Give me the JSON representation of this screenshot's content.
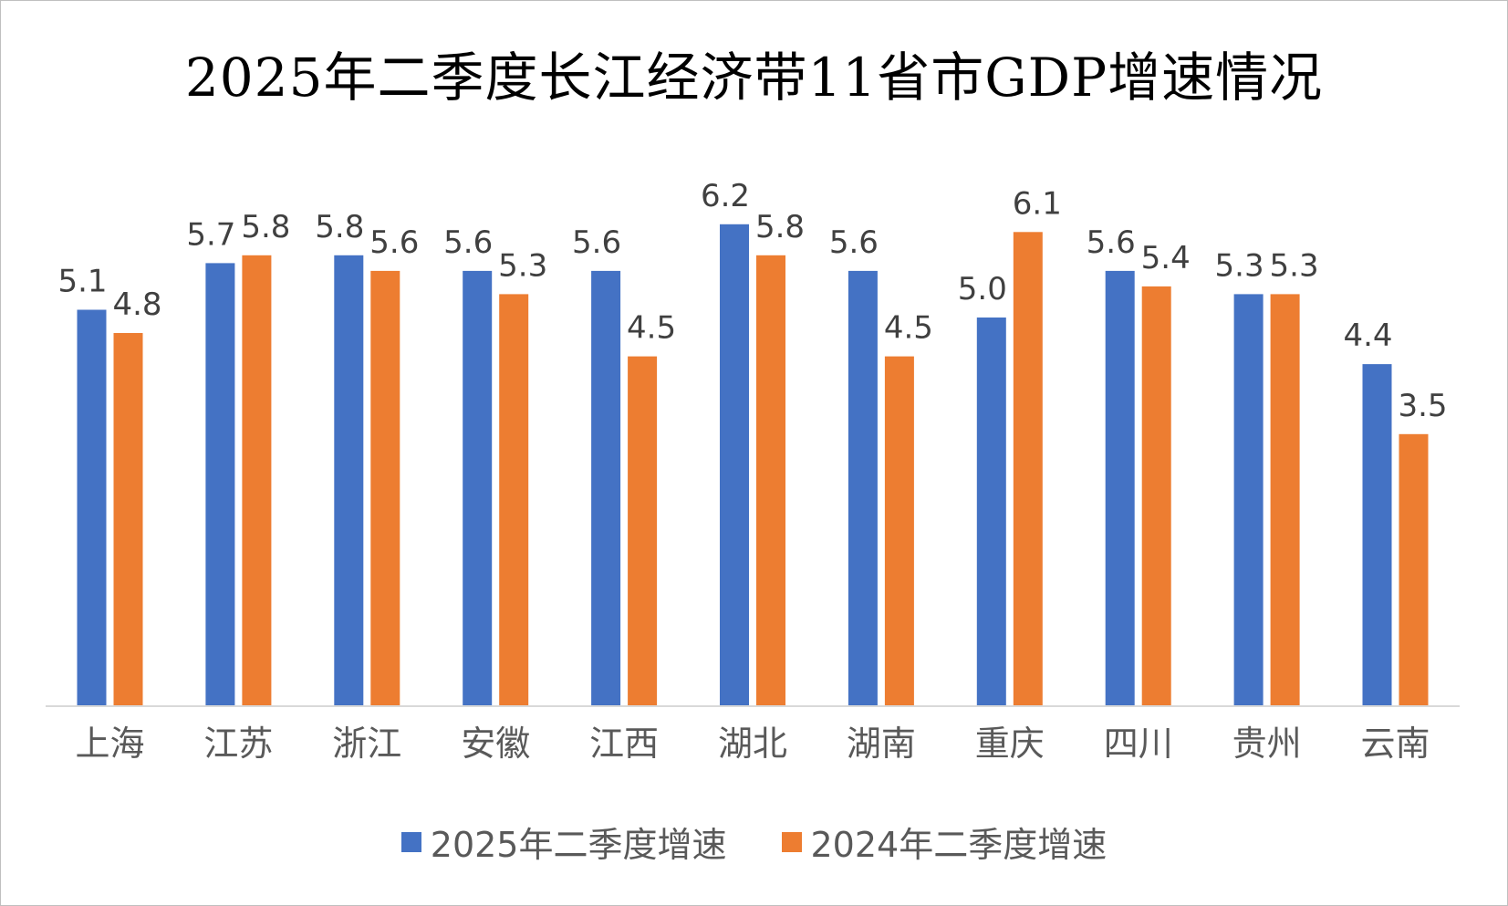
{
  "chart_data": {
    "type": "bar",
    "title": "2025年二季度长江经济带11省市GDP增速情况",
    "categories": [
      "上海",
      "江苏",
      "浙江",
      "安徽",
      "江西",
      "湖北",
      "湖南",
      "重庆",
      "四川",
      "贵州",
      "云南"
    ],
    "series": [
      {
        "name": "2025年二季度增速",
        "color": "#4472C4",
        "values": [
          5.1,
          5.7,
          5.8,
          5.6,
          5.6,
          6.2,
          5.6,
          5.0,
          5.6,
          5.3,
          4.4
        ]
      },
      {
        "name": "2024年二季度增速",
        "color": "#ED7D31",
        "values": [
          4.8,
          5.8,
          5.6,
          5.3,
          4.5,
          5.8,
          4.5,
          6.1,
          5.4,
          5.3,
          3.5
        ]
      }
    ],
    "xlabel": "",
    "ylabel": "",
    "ylim": [
      0,
      7
    ],
    "grid": false,
    "legend": "bottom",
    "data_labels": true
  }
}
